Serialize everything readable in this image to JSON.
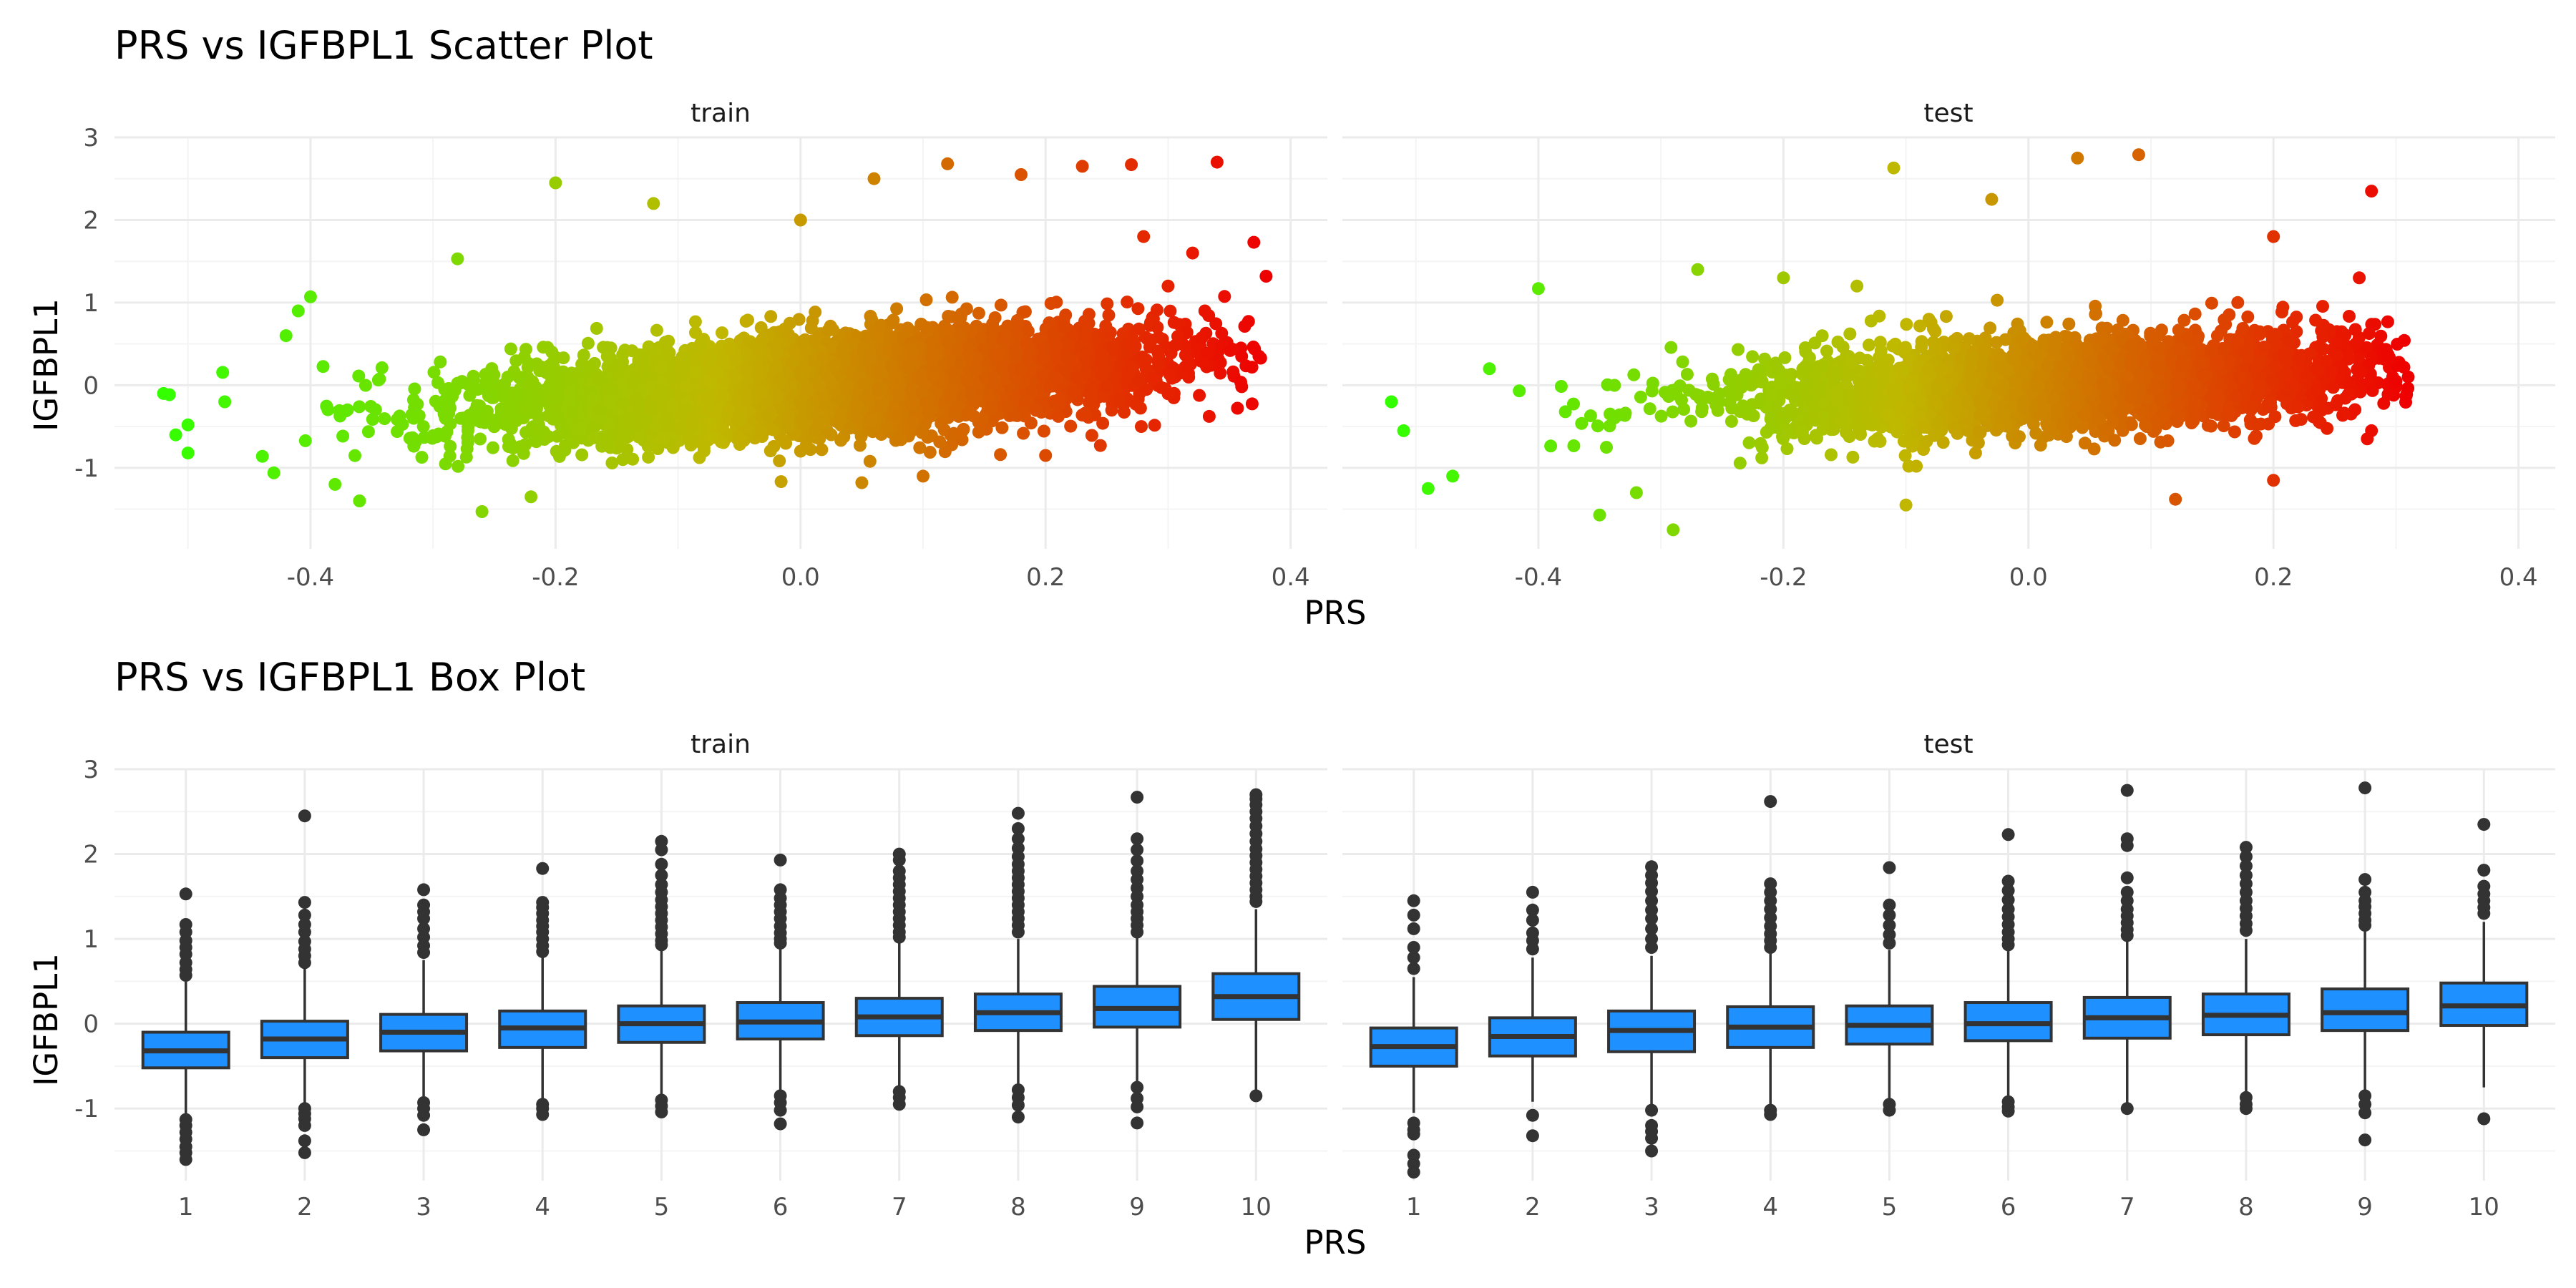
{
  "colors": {
    "low": "#33ff00",
    "mid": "#c0b800",
    "high": "#ee0000",
    "box_fill": "#1e90ff",
    "box_line": "#333333",
    "grid": "#ebebeb"
  },
  "chart_data": [
    {
      "type": "scatter",
      "title": "PRS vs IGFBPL1 Scatter Plot",
      "xlabel": "PRS",
      "ylabel": "IGFBPL1",
      "xlim": [
        -0.56,
        0.43
      ],
      "ylim": [
        -1.98,
        3.0
      ],
      "xticks": [
        -0.4,
        -0.2,
        0.0,
        0.2,
        0.4
      ],
      "xtick_labels": [
        "-0.4",
        "-0.2",
        "0.0",
        "0.2",
        "0.4"
      ],
      "yticks": [
        -1,
        0,
        1,
        2,
        3
      ],
      "ytick_labels": [
        "-1",
        "0",
        "1",
        "2",
        "3"
      ],
      "color_scale": [
        "low",
        "mid",
        "high"
      ],
      "panels": [
        {
          "label": "train",
          "x_range": [
            -0.52,
            0.38
          ],
          "fit": {
            "intercept": 0.0,
            "slope": 2.0
          },
          "spread_sd": 0.38,
          "points": [
            [
              -0.52,
              -0.1
            ],
            [
              -0.51,
              -0.6
            ],
            [
              -0.5,
              -0.48
            ],
            [
              -0.5,
              -0.82
            ],
            [
              -0.47,
              -0.2
            ],
            [
              -0.42,
              0.6
            ],
            [
              -0.41,
              0.9
            ],
            [
              -0.4,
              1.07
            ],
            [
              -0.38,
              -1.2
            ],
            [
              -0.36,
              -1.4
            ],
            [
              -0.28,
              1.53
            ],
            [
              -0.26,
              -1.53
            ],
            [
              -0.22,
              -1.35
            ],
            [
              -0.2,
              2.45
            ],
            [
              -0.12,
              2.2
            ],
            [
              0.0,
              2.0
            ],
            [
              0.06,
              2.5
            ],
            [
              0.12,
              2.68
            ],
            [
              0.18,
              2.55
            ],
            [
              0.23,
              2.65
            ],
            [
              0.27,
              2.67
            ],
            [
              0.28,
              1.8
            ],
            [
              0.3,
              1.2
            ],
            [
              0.32,
              1.6
            ],
            [
              0.34,
              2.7
            ],
            [
              0.33,
              0.9
            ],
            [
              0.36,
              0.35
            ],
            [
              0.37,
              1.73
            ],
            [
              0.38,
              1.32
            ],
            [
              0.2,
              -0.85
            ],
            [
              0.1,
              -1.1
            ],
            [
              0.05,
              -1.18
            ]
          ]
        },
        {
          "label": "test",
          "x_range": [
            -0.52,
            0.31
          ],
          "fit": {
            "intercept": 0.0,
            "slope": 1.55
          },
          "spread_sd": 0.37,
          "points": [
            [
              -0.52,
              -0.2
            ],
            [
              -0.51,
              -0.55
            ],
            [
              -0.49,
              -1.25
            ],
            [
              -0.47,
              -1.1
            ],
            [
              -0.44,
              0.2
            ],
            [
              -0.4,
              1.17
            ],
            [
              -0.35,
              -1.57
            ],
            [
              -0.32,
              -1.3
            ],
            [
              -0.29,
              -1.75
            ],
            [
              -0.27,
              1.4
            ],
            [
              -0.2,
              1.3
            ],
            [
              -0.14,
              1.2
            ],
            [
              -0.11,
              2.63
            ],
            [
              -0.1,
              -1.45
            ],
            [
              -0.03,
              2.25
            ],
            [
              0.04,
              2.75
            ],
            [
              0.09,
              2.79
            ],
            [
              0.12,
              -1.38
            ],
            [
              0.2,
              1.8
            ],
            [
              0.2,
              -1.15
            ],
            [
              0.27,
              1.3
            ],
            [
              0.28,
              2.35
            ],
            [
              0.28,
              -0.55
            ],
            [
              0.29,
              -0.22
            ],
            [
              0.3,
              0.05
            ],
            [
              0.31,
              0.1
            ]
          ]
        }
      ]
    },
    {
      "type": "box",
      "title": "PRS vs IGFBPL1 Box Plot",
      "xlabel": "PRS",
      "ylabel": "IGFBPL1",
      "ylim": [
        -1.85,
        3.0
      ],
      "yticks": [
        -1,
        0,
        1,
        2,
        3
      ],
      "ytick_labels": [
        "-1",
        "0",
        "1",
        "2",
        "3"
      ],
      "categories": [
        "1",
        "2",
        "3",
        "4",
        "5",
        "6",
        "7",
        "8",
        "9",
        "10"
      ],
      "panels": [
        {
          "label": "train",
          "boxes": [
            {
              "q1": -0.52,
              "median": -0.32,
              "q3": -0.1,
              "lo": -1.08,
              "hi": 0.52,
              "outliers": [
                1.53,
                1.17,
                1.08,
                0.98,
                0.9,
                0.82,
                0.72,
                0.64,
                0.57,
                -1.13,
                -1.2,
                -1.28,
                -1.36,
                -1.45,
                -1.52,
                -1.6
              ]
            },
            {
              "q1": -0.4,
              "median": -0.18,
              "q3": 0.03,
              "lo": -0.95,
              "hi": 0.65,
              "outliers": [
                2.45,
                1.43,
                1.28,
                1.17,
                1.08,
                0.97,
                0.88,
                0.8,
                0.72,
                -1.0,
                -1.06,
                -1.12,
                -1.2,
                -1.38,
                -1.52
              ]
            },
            {
              "q1": -0.32,
              "median": -0.1,
              "q3": 0.11,
              "lo": -0.9,
              "hi": 0.75,
              "outliers": [
                1.58,
                1.4,
                1.32,
                1.24,
                1.12,
                1.02,
                0.92,
                0.84,
                -0.93,
                -1.0,
                -1.08,
                -1.25
              ]
            },
            {
              "q1": -0.28,
              "median": -0.05,
              "q3": 0.15,
              "lo": -0.9,
              "hi": 0.8,
              "outliers": [
                1.83,
                1.43,
                1.37,
                1.3,
                1.22,
                1.15,
                1.08,
                1.0,
                0.92,
                0.85,
                -0.95,
                -1.0,
                -1.07
              ]
            },
            {
              "q1": -0.22,
              "median": 0.0,
              "q3": 0.21,
              "lo": -0.85,
              "hi": 0.87,
              "outliers": [
                2.15,
                2.05,
                1.88,
                1.75,
                1.64,
                1.55,
                1.46,
                1.38,
                1.3,
                1.22,
                1.14,
                1.06,
                0.98,
                0.93,
                -0.9,
                -0.97,
                -1.04
              ]
            },
            {
              "q1": -0.18,
              "median": 0.02,
              "q3": 0.25,
              "lo": -0.8,
              "hi": 0.9,
              "outliers": [
                1.93,
                1.58,
                1.48,
                1.4,
                1.32,
                1.24,
                1.15,
                1.07,
                1.0,
                0.95,
                -0.85,
                -0.93,
                -1.02,
                -1.18
              ]
            },
            {
              "q1": -0.14,
              "median": 0.08,
              "q3": 0.3,
              "lo": -0.75,
              "hi": 0.95,
              "outliers": [
                2.0,
                1.93,
                1.8,
                1.72,
                1.64,
                1.56,
                1.48,
                1.4,
                1.32,
                1.24,
                1.16,
                1.08,
                1.02,
                -0.8,
                -0.87,
                -0.95
              ]
            },
            {
              "q1": -0.08,
              "median": 0.13,
              "q3": 0.35,
              "lo": -0.72,
              "hi": 1.0,
              "outliers": [
                2.48,
                2.3,
                2.18,
                2.07,
                1.97,
                1.88,
                1.8,
                1.72,
                1.64,
                1.56,
                1.48,
                1.4,
                1.32,
                1.24,
                1.16,
                1.08,
                -0.78,
                -0.87,
                -0.96,
                -1.1
              ]
            },
            {
              "q1": -0.04,
              "median": 0.18,
              "q3": 0.44,
              "lo": -0.7,
              "hi": 1.02,
              "outliers": [
                2.67,
                2.18,
                2.05,
                1.92,
                1.8,
                1.7,
                1.6,
                1.5,
                1.4,
                1.32,
                1.24,
                1.16,
                1.08,
                -0.75,
                -0.88,
                -0.98,
                -1.17
              ]
            },
            {
              "q1": 0.05,
              "median": 0.32,
              "q3": 0.59,
              "lo": -0.82,
              "hi": 1.35,
              "outliers": [
                2.7,
                2.65,
                2.58,
                2.5,
                2.42,
                2.33,
                2.24,
                2.15,
                2.06,
                1.98,
                1.9,
                1.82,
                1.74,
                1.66,
                1.58,
                1.5,
                1.44,
                -0.85
              ]
            }
          ]
        },
        {
          "label": "test",
          "boxes": [
            {
              "q1": -0.5,
              "median": -0.27,
              "q3": -0.05,
              "lo": -1.05,
              "hi": 0.55,
              "outliers": [
                1.45,
                1.28,
                1.12,
                0.9,
                0.78,
                0.65,
                -1.17,
                -1.25,
                -1.3,
                -1.55,
                -1.65,
                -1.75
              ]
            },
            {
              "q1": -0.38,
              "median": -0.15,
              "q3": 0.07,
              "lo": -0.92,
              "hi": 0.78,
              "outliers": [
                1.55,
                1.34,
                1.22,
                1.07,
                0.98,
                0.88,
                -1.08,
                -1.32
              ]
            },
            {
              "q1": -0.33,
              "median": -0.08,
              "q3": 0.15,
              "lo": -0.95,
              "hi": 0.8,
              "outliers": [
                1.85,
                1.75,
                1.66,
                1.56,
                1.45,
                1.34,
                1.24,
                1.12,
                1.0,
                0.9,
                -1.02,
                -1.2,
                -1.27,
                -1.35,
                -1.5
              ]
            },
            {
              "q1": -0.28,
              "median": -0.04,
              "q3": 0.2,
              "lo": -0.98,
              "hi": 0.85,
              "outliers": [
                2.62,
                1.65,
                1.55,
                1.45,
                1.35,
                1.25,
                1.15,
                1.06,
                0.98,
                0.9,
                -1.02,
                -1.07
              ]
            },
            {
              "q1": -0.24,
              "median": -0.02,
              "q3": 0.21,
              "lo": -0.88,
              "hi": 0.87,
              "outliers": [
                1.84,
                1.4,
                1.28,
                1.16,
                1.05,
                0.95,
                -0.95,
                -1.02
              ]
            },
            {
              "q1": -0.2,
              "median": 0.0,
              "q3": 0.25,
              "lo": -0.88,
              "hi": 0.9,
              "outliers": [
                2.23,
                1.68,
                1.57,
                1.46,
                1.35,
                1.26,
                1.17,
                1.08,
                1.0,
                0.93,
                -0.92,
                -0.98,
                -1.03
              ]
            },
            {
              "q1": -0.17,
              "median": 0.07,
              "q3": 0.31,
              "lo": -0.97,
              "hi": 0.97,
              "outliers": [
                2.75,
                2.18,
                2.1,
                1.72,
                1.55,
                1.45,
                1.35,
                1.27,
                1.19,
                1.11,
                1.04,
                -1.0
              ]
            },
            {
              "q1": -0.13,
              "median": 0.1,
              "q3": 0.35,
              "lo": -0.83,
              "hi": 1.0,
              "outliers": [
                2.08,
                1.97,
                1.86,
                1.75,
                1.65,
                1.55,
                1.45,
                1.36,
                1.27,
                1.18,
                1.1,
                -0.87,
                -0.95,
                -1.0
              ]
            },
            {
              "q1": -0.08,
              "median": 0.13,
              "q3": 0.41,
              "lo": -0.8,
              "hi": 1.1,
              "outliers": [
                2.78,
                1.7,
                1.55,
                1.45,
                1.38,
                1.3,
                1.22,
                1.16,
                -0.85,
                -0.95,
                -1.05,
                -1.37
              ]
            },
            {
              "q1": -0.02,
              "median": 0.21,
              "q3": 0.48,
              "lo": -0.75,
              "hi": 1.2,
              "outliers": [
                2.35,
                1.81,
                1.62,
                1.53,
                1.45,
                1.37,
                1.3,
                -1.12
              ]
            }
          ]
        }
      ]
    }
  ]
}
